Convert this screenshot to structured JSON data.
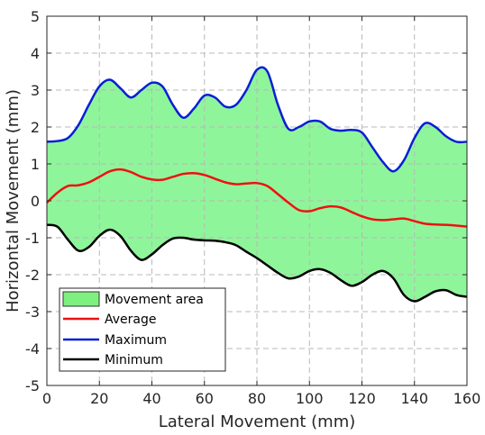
{
  "chart_data": {
    "type": "line",
    "title": "",
    "xlabel": "Lateral Movement (mm)",
    "ylabel": "Horizontal Movement (mm)",
    "xlim": [
      0,
      160
    ],
    "ylim": [
      -5,
      5
    ],
    "xticks": [
      0,
      20,
      40,
      60,
      80,
      100,
      120,
      140,
      160
    ],
    "yticks": [
      -5,
      -4,
      -3,
      -2,
      -1,
      0,
      1,
      2,
      3,
      4,
      5
    ],
    "grid": true,
    "legend_position": "bottom-left",
    "legend": [
      "Movement area",
      "Average",
      "Maximum",
      "Minimum"
    ],
    "colors": {
      "area_fill": "#8ff59a",
      "area_legend": "#7df07f",
      "average": "#ee1111",
      "maximum": "#0a1fd6",
      "minimum": "#000000"
    },
    "series": [
      {
        "name": "Maximum",
        "x": [
          0,
          4,
          8,
          12,
          16,
          20,
          24,
          28,
          32,
          36,
          40,
          44,
          48,
          52,
          56,
          60,
          64,
          68,
          72,
          76,
          80,
          84,
          88,
          92,
          96,
          100,
          104,
          108,
          112,
          116,
          120,
          124,
          128,
          132,
          136,
          140,
          144,
          148,
          152,
          156,
          160
        ],
        "y": [
          1.6,
          1.62,
          1.7,
          2.05,
          2.6,
          3.1,
          3.28,
          3.05,
          2.8,
          3.0,
          3.2,
          3.1,
          2.6,
          2.25,
          2.5,
          2.85,
          2.8,
          2.55,
          2.6,
          3.0,
          3.55,
          3.5,
          2.6,
          1.95,
          2.0,
          2.15,
          2.15,
          1.95,
          1.9,
          1.92,
          1.85,
          1.45,
          1.05,
          0.8,
          1.1,
          1.7,
          2.1,
          2.0,
          1.75,
          1.6,
          1.6
        ]
      },
      {
        "name": "Average",
        "x": [
          0,
          4,
          8,
          12,
          16,
          20,
          24,
          28,
          32,
          36,
          40,
          44,
          48,
          52,
          56,
          60,
          64,
          68,
          72,
          76,
          80,
          84,
          88,
          92,
          96,
          100,
          104,
          108,
          112,
          116,
          120,
          124,
          128,
          132,
          136,
          140,
          144,
          148,
          152,
          156,
          160
        ],
        "y": [
          -0.05,
          0.22,
          0.4,
          0.42,
          0.5,
          0.65,
          0.8,
          0.85,
          0.78,
          0.65,
          0.58,
          0.57,
          0.65,
          0.73,
          0.75,
          0.7,
          0.6,
          0.5,
          0.45,
          0.47,
          0.48,
          0.4,
          0.18,
          -0.05,
          -0.25,
          -0.28,
          -0.2,
          -0.15,
          -0.18,
          -0.3,
          -0.42,
          -0.5,
          -0.52,
          -0.5,
          -0.48,
          -0.55,
          -0.62,
          -0.64,
          -0.65,
          -0.67,
          -0.7
        ]
      },
      {
        "name": "Minimum",
        "x": [
          0,
          4,
          8,
          12,
          16,
          20,
          24,
          28,
          32,
          36,
          40,
          44,
          48,
          52,
          56,
          60,
          64,
          68,
          72,
          76,
          80,
          84,
          88,
          92,
          96,
          100,
          104,
          108,
          112,
          116,
          120,
          124,
          128,
          132,
          136,
          140,
          144,
          148,
          152,
          156,
          160
        ],
        "y": [
          -0.65,
          -0.7,
          -1.05,
          -1.35,
          -1.25,
          -0.95,
          -0.78,
          -0.95,
          -1.35,
          -1.6,
          -1.45,
          -1.2,
          -1.02,
          -1.0,
          -1.05,
          -1.07,
          -1.08,
          -1.12,
          -1.2,
          -1.38,
          -1.55,
          -1.75,
          -1.95,
          -2.1,
          -2.05,
          -1.9,
          -1.85,
          -1.95,
          -2.15,
          -2.3,
          -2.2,
          -2.0,
          -1.9,
          -2.1,
          -2.55,
          -2.72,
          -2.6,
          -2.45,
          -2.42,
          -2.55,
          -2.6
        ]
      }
    ]
  }
}
